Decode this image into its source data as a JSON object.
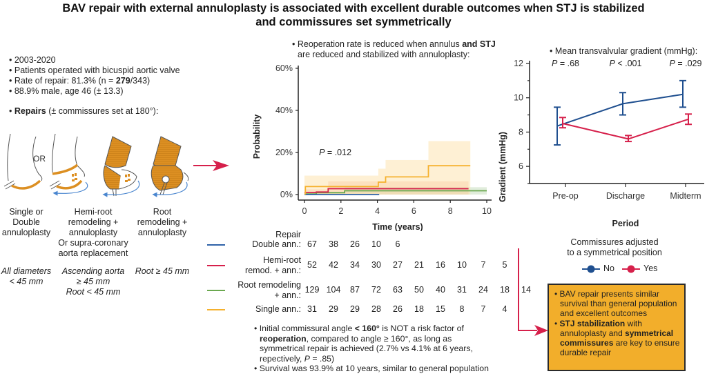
{
  "title": {
    "line1": "BAV repair with external annuloplasty is associated with excellent durable outcomes when STJ is stabilized",
    "line2": "and commissures set symmetrically"
  },
  "left_panel": {
    "facts": [
      "2003-2020",
      "Patients operated with bicuspid aortic valve",
      {
        "pre": "Rate of repair: 81.3% (n = ",
        "bold": "279",
        "post": "/343)"
      },
      "88.9% male, age 46 (± 13.3)"
    ],
    "repairs_heading": {
      "bold": "Repairs",
      "rest": " (± commissures set at 180°):"
    },
    "or_label": "OR",
    "angle_label": "180°",
    "colors": {
      "ring": "#dc8f22",
      "arrow": "#4a86cf",
      "outline": "#555555"
    },
    "repair_types": [
      {
        "lines": [
          "Single or",
          "Double",
          "annuloplasty"
        ],
        "criteria": [
          "All diameters",
          "< 45 mm"
        ]
      },
      {
        "lines": [
          "Hemi-root",
          "remodeling +",
          "annuloplasty",
          "Or supra-coronary",
          "aorta replacement"
        ],
        "criteria": [
          "Ascending aorta",
          "≥ 45 mm",
          "Root < 45 mm"
        ]
      },
      {
        "lines": [
          "Root",
          "remodeling +",
          "annuloplasty"
        ],
        "criteria": [
          "Root ≥ 45 mm"
        ]
      }
    ]
  },
  "middle_panel": {
    "heading": {
      "line1_pre": "Reoperation rate is reduced when annulus ",
      "line1_bold": "and STJ",
      "line2": "are reduced and stabilized with annuloplasty:"
    },
    "risk_table": {
      "header": "Repair",
      "rows": [
        {
          "name_lines": [
            "Double ann.:"
          ],
          "color": "#2e62a8",
          "counts": [
            67,
            38,
            26,
            10,
            6
          ]
        },
        {
          "name_lines": [
            "Hemi-root",
            "remod. + ann.:"
          ],
          "color": "#d6204b",
          "counts": [
            52,
            42,
            34,
            30,
            27,
            21,
            16,
            10,
            7,
            5
          ]
        },
        {
          "name_lines": [
            "Root remodeling",
            "+ ann.:"
          ],
          "color": "#6aa84f",
          "counts": [
            129,
            104,
            87,
            72,
            63,
            50,
            40,
            31,
            24,
            18,
            14
          ]
        },
        {
          "name_lines": [
            "Single ann.:"
          ],
          "color": "#f5b12e",
          "counts": [
            31,
            29,
            29,
            28,
            26,
            18,
            15,
            8,
            7,
            4
          ]
        }
      ]
    },
    "notes": [
      {
        "parts": [
          [
            "Initial commissural angle ",
            false
          ],
          [
            "< 160°",
            true
          ],
          [
            " is NOT a risk factor of",
            false
          ]
        ]
      },
      {
        "parts": [
          [
            "reoperation",
            true
          ],
          [
            ", compared to angle ≥ 160°, as long as",
            false
          ]
        ],
        "cont": true
      },
      {
        "parts": [
          [
            "symmetrical repair is achieved (2.7% vs 4.1% at 6 years,",
            false
          ]
        ],
        "cont": true
      },
      {
        "parts": [
          [
            "repectively, ",
            false
          ],
          [
            "P",
            "i"
          ],
          [
            " = .85)",
            false
          ]
        ],
        "cont": true
      },
      {
        "parts": [
          [
            "Survival was 93.9% at 10 years, similar to general population",
            false
          ]
        ]
      }
    ]
  },
  "right_panel": {
    "heading": "Mean transvalvular gradient (mmHg):",
    "legend_title": [
      "Commissures adjusted",
      "to a symmetrical position"
    ],
    "legend": [
      {
        "label": "No",
        "color": "#1f4f8f"
      },
      {
        "label": "Yes",
        "color": "#d6204b"
      }
    ],
    "conclusion": [
      {
        "parts": [
          [
            "BAV repair presents similar survival than general population and excellent outcomes",
            false
          ]
        ]
      },
      {
        "parts": [
          [
            "STJ stabilization",
            true
          ],
          [
            " with annuloplasty and ",
            false
          ],
          [
            "symmetrical commissures",
            true
          ],
          [
            " are key to ensure durable repair",
            false
          ]
        ]
      }
    ],
    "colors": {
      "box_fill": "#f2ae2b",
      "connector": "#d6204b"
    }
  },
  "chart_data": [
    {
      "type": "line",
      "subtype": "cumulative-incidence-step",
      "title": "Reoperation",
      "xlabel": "Time (years)",
      "ylabel": "Probability",
      "xlim": [
        0,
        10
      ],
      "ylim": [
        0,
        60
      ],
      "x_ticks": [
        0,
        2,
        4,
        6,
        8,
        10
      ],
      "y_ticks": [
        "0%",
        "20%",
        "40%",
        "60%"
      ],
      "y_tick_values": [
        0,
        20,
        40,
        60
      ],
      "annotation": {
        "label": "P",
        "value": " = .012",
        "x": 0.8,
        "y": 20
      },
      "grid": false,
      "series": [
        {
          "name": "Double ann.",
          "color": "#2e62a8",
          "steps": [
            [
              0,
              0
            ],
            [
              4.1,
              0
            ]
          ],
          "ci": null
        },
        {
          "name": "Hemi-root remod. + ann.",
          "color": "#d6204b",
          "steps": [
            [
              0,
              1.0
            ],
            [
              0.65,
              1.0
            ],
            [
              0.65,
              1.2
            ],
            [
              1.3,
              1.2
            ],
            [
              1.3,
              2.8
            ],
            [
              9.0,
              2.8
            ]
          ],
          "ci": {
            "color": "#f0a07a",
            "opacity": 0.35,
            "steps": [
              [
                0,
                0,
                2.5
              ],
              [
                1.3,
                0,
                6.3
              ],
              [
                9.0,
                0,
                6.3
              ]
            ]
          }
        },
        {
          "name": "Root remodeling + ann.",
          "color": "#6aa84f",
          "steps": [
            [
              0,
              0.3
            ],
            [
              0.65,
              0.3
            ],
            [
              0.65,
              0.9
            ],
            [
              2.2,
              0.9
            ],
            [
              2.2,
              1.8
            ],
            [
              10.0,
              1.8
            ]
          ],
          "ci": {
            "color": "#9cc48a",
            "opacity": 0.3,
            "steps": [
              [
                0,
                0,
                1.2
              ],
              [
                2.2,
                0,
                3.5
              ],
              [
                10.0,
                0,
                3.5
              ]
            ]
          }
        },
        {
          "name": "Single ann.",
          "color": "#f5b12e",
          "steps": [
            [
              0,
              0.3
            ],
            [
              0.05,
              0.3
            ],
            [
              0.05,
              3.8
            ],
            [
              4.05,
              3.8
            ],
            [
              4.05,
              5.9
            ],
            [
              4.45,
              5.9
            ],
            [
              4.45,
              8.4
            ],
            [
              6.8,
              8.4
            ],
            [
              6.8,
              13.7
            ],
            [
              9.1,
              13.7
            ]
          ],
          "ci": {
            "color": "#fde3b0",
            "opacity": 0.55,
            "steps": [
              [
                0,
                0,
                9.0
              ],
              [
                4.05,
                0,
                12.3
              ],
              [
                4.45,
                0,
                16.4
              ],
              [
                6.8,
                0,
                25.4
              ],
              [
                9.1,
                0,
                25.4
              ]
            ]
          }
        }
      ]
    },
    {
      "type": "line",
      "subtype": "mean-with-error-bars",
      "title": "Mean transvalvular gradient (mmHg)",
      "xlabel": "Period",
      "ylabel": "Gradient (mmHg)",
      "categories": [
        "Pre-op",
        "Discharge",
        "Midterm"
      ],
      "ylim": [
        5,
        12
      ],
      "y_ticks": [
        6,
        8,
        10,
        12
      ],
      "p_values": [
        {
          "label": "P",
          "value": " = .68"
        },
        {
          "label": "P",
          "value": " < .001"
        },
        {
          "label": "P",
          "value": " = .029"
        }
      ],
      "grid": false,
      "legend_position": "bottom",
      "series": [
        {
          "name": "No",
          "color": "#1f4f8f",
          "values": [
            8.35,
            9.65,
            10.2
          ],
          "lower": [
            7.25,
            9.0,
            9.45
          ],
          "upper": [
            9.45,
            10.3,
            11.0
          ]
        },
        {
          "name": "Yes",
          "color": "#d6204b",
          "values": [
            8.5,
            7.6,
            8.75
          ],
          "lower": [
            8.25,
            7.45,
            8.45
          ],
          "upper": [
            8.85,
            7.8,
            9.05
          ]
        }
      ]
    }
  ]
}
